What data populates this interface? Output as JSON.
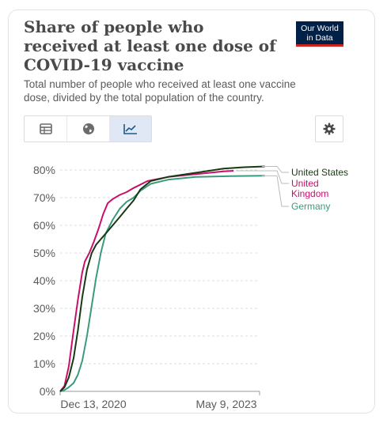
{
  "header": {
    "title": "Share of people who received at least one dose of COVID-19 vaccine",
    "subtitle": "Total number of people who received at least one vaccine dose, divided by the total population of the country.",
    "logo_line1": "Our World",
    "logo_line2": "in Data"
  },
  "toolbar": {
    "icons": [
      "table-icon",
      "globe-icon",
      "line-chart-icon",
      "gear-icon"
    ],
    "active_tab": "chart"
  },
  "colors": {
    "us": "#183a12",
    "uk": "#c8106a",
    "de": "#3a9a7e",
    "logo_bg": "#002147",
    "logo_accent": "#ce261e"
  },
  "chart_data": {
    "type": "line",
    "xlabel": "",
    "ylabel": "",
    "x_ticks": [
      "Dec 13, 2020",
      "May 9, 2023"
    ],
    "y_ticks": [
      "0%",
      "10%",
      "20%",
      "30%",
      "40%",
      "50%",
      "60%",
      "70%",
      "80%"
    ],
    "ylim": [
      0,
      80
    ],
    "grid": "horizontal dashed",
    "legend": "right, end of lines",
    "series": [
      {
        "name": "United States",
        "color": "#183a12",
        "points": [
          [
            "2020-12-13",
            0
          ],
          [
            "2021-01-01",
            1.5
          ],
          [
            "2021-01-20",
            5
          ],
          [
            "2021-02-10",
            12
          ],
          [
            "2021-03-01",
            22
          ],
          [
            "2021-03-20",
            34
          ],
          [
            "2021-04-10",
            44
          ],
          [
            "2021-05-01",
            50
          ],
          [
            "2021-05-20",
            53
          ],
          [
            "2021-06-10",
            55
          ],
          [
            "2021-07-01",
            57
          ],
          [
            "2021-08-01",
            60
          ],
          [
            "2021-09-01",
            63
          ],
          [
            "2021-10-01",
            66
          ],
          [
            "2021-11-01",
            69
          ],
          [
            "2021-12-01",
            73
          ],
          [
            "2022-01-15",
            76
          ],
          [
            "2022-04-01",
            77.5
          ],
          [
            "2022-08-01",
            79
          ],
          [
            "2022-12-01",
            80.5
          ],
          [
            "2023-03-01",
            81
          ],
          [
            "2023-06-01",
            81.3
          ]
        ]
      },
      {
        "name": "United Kingdom",
        "color": "#c8106a",
        "points": [
          [
            "2020-12-13",
            0
          ],
          [
            "2021-01-01",
            2
          ],
          [
            "2021-01-20",
            9
          ],
          [
            "2021-02-10",
            22
          ],
          [
            "2021-03-01",
            33
          ],
          [
            "2021-03-20",
            43
          ],
          [
            "2021-04-01",
            47
          ],
          [
            "2021-04-20",
            50
          ],
          [
            "2021-05-10",
            54
          ],
          [
            "2021-06-01",
            59
          ],
          [
            "2021-06-20",
            64
          ],
          [
            "2021-07-10",
            68
          ],
          [
            "2021-08-01",
            69.5
          ],
          [
            "2021-09-01",
            71
          ],
          [
            "2021-10-01",
            72
          ],
          [
            "2021-11-01",
            73.5
          ],
          [
            "2022-01-01",
            76
          ],
          [
            "2022-04-01",
            77.5
          ],
          [
            "2022-08-01",
            78.5
          ],
          [
            "2022-12-01",
            79.5
          ],
          [
            "2023-01-15",
            79.7
          ]
        ]
      },
      {
        "name": "Germany",
        "color": "#3a9a7e",
        "points": [
          [
            "2020-12-13",
            0
          ],
          [
            "2021-01-01",
            0.5
          ],
          [
            "2021-01-20",
            1.5
          ],
          [
            "2021-02-10",
            3
          ],
          [
            "2021-03-01",
            6
          ],
          [
            "2021-03-20",
            11
          ],
          [
            "2021-04-10",
            20
          ],
          [
            "2021-05-01",
            31
          ],
          [
            "2021-05-20",
            41
          ],
          [
            "2021-06-10",
            50
          ],
          [
            "2021-07-01",
            57
          ],
          [
            "2021-08-01",
            62
          ],
          [
            "2021-09-01",
            66
          ],
          [
            "2021-10-01",
            68.5
          ],
          [
            "2021-11-01",
            70
          ],
          [
            "2021-12-01",
            72.5
          ],
          [
            "2022-01-15",
            75
          ],
          [
            "2022-04-01",
            76.5
          ],
          [
            "2022-08-01",
            77.5
          ],
          [
            "2023-01-01",
            77.8
          ],
          [
            "2023-06-01",
            77.9
          ]
        ]
      }
    ]
  }
}
